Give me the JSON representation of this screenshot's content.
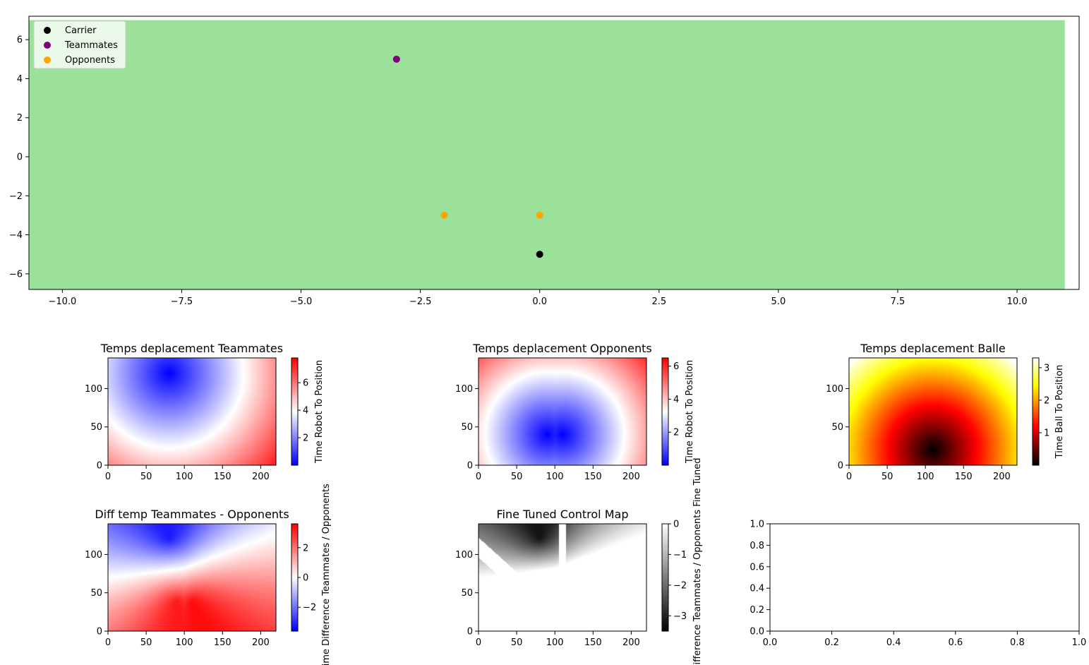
{
  "colors": {
    "field": "#9be19a",
    "carrier": "#000000",
    "teammates": "#800080",
    "opponents": "#ffa500"
  },
  "chart_data": [
    {
      "type": "scatter",
      "background": "green field rectangle",
      "xlim": [
        -10.7,
        11.3
      ],
      "ylim": [
        -6.8,
        7.2
      ],
      "xticks": [
        -10.0,
        -7.5,
        -5.0,
        -2.5,
        0.0,
        2.5,
        5.0,
        7.5,
        10.0
      ],
      "xtick_labels": [
        "−10.0",
        "−7.5",
        "−5.0",
        "−2.5",
        "0.0",
        "2.5",
        "5.0",
        "7.5",
        "10.0"
      ],
      "yticks": [
        6,
        4,
        2,
        0,
        -2,
        -4,
        -6
      ],
      "ytick_labels": [
        "6",
        "4",
        "2",
        "0",
        "−2",
        "−4",
        "−6"
      ],
      "field_rect": {
        "x0": -10.7,
        "x1": 11.0,
        "y0": -6.8,
        "y1": 7.0
      },
      "legend_position": "top-left",
      "series": [
        {
          "name": "Carrier",
          "color": "#000000",
          "points": [
            [
              0,
              -5
            ]
          ]
        },
        {
          "name": "Teammates",
          "color": "#800080",
          "points": [
            [
              -3,
              5
            ]
          ]
        },
        {
          "name": "Opponents",
          "color": "#ffa500",
          "points": [
            [
              -2,
              -3
            ],
            [
              0,
              -3
            ]
          ]
        }
      ]
    },
    {
      "type": "heatmap",
      "title": "Temps deplacement Teammates",
      "colormap": "bwr",
      "x_range": [
        0,
        220
      ],
      "y_range": [
        0,
        140
      ],
      "xticks": [
        "0",
        "50",
        "100",
        "150",
        "200"
      ],
      "yticks": [
        "0",
        "50",
        "100"
      ],
      "sources": [
        [
          80,
          120
        ]
      ],
      "value_range": [
        0,
        7.8
      ],
      "colorbar_label": "Time Robot To Position",
      "colorbar_ticks": [
        "2",
        "4",
        "6"
      ]
    },
    {
      "type": "heatmap",
      "title": "Temps deplacement Opponents",
      "colormap": "bwr",
      "x_range": [
        0,
        220
      ],
      "y_range": [
        0,
        140
      ],
      "xticks": [
        "0",
        "50",
        "100",
        "150",
        "200"
      ],
      "yticks": [
        "0",
        "50",
        "100"
      ],
      "sources": [
        [
          90,
          40
        ],
        [
          110,
          40
        ]
      ],
      "value_range": [
        0,
        6.5
      ],
      "colorbar_label": "Time Robot To Position",
      "colorbar_ticks": [
        "2",
        "4",
        "6"
      ]
    },
    {
      "type": "heatmap",
      "title": "Temps deplacement Balle",
      "colormap": "hot",
      "x_range": [
        0,
        220
      ],
      "y_range": [
        0,
        140
      ],
      "xticks": [
        "0",
        "50",
        "100",
        "150",
        "200"
      ],
      "yticks": [
        "0",
        "50",
        "100"
      ],
      "sources": [
        [
          110,
          20
        ]
      ],
      "value_range": [
        0,
        3.3
      ],
      "colorbar_label": "Time Ball To Position",
      "colorbar_ticks": [
        "1",
        "2",
        "3"
      ]
    },
    {
      "type": "heatmap",
      "title": "Diff temp Teammates - Opponents",
      "colormap": "bwr",
      "x_range": [
        0,
        220
      ],
      "y_range": [
        0,
        140
      ],
      "xticks": [
        "0",
        "50",
        "100",
        "150",
        "200"
      ],
      "yticks": [
        "0",
        "50",
        "100"
      ],
      "value_range": [
        -3.6,
        3.6
      ],
      "colorbar_label": "Time Difference Teammates / Opponents",
      "colorbar_ticks": [
        "−2",
        "0",
        "2"
      ]
    },
    {
      "type": "heatmap",
      "title": "Fine Tuned Control Map",
      "colormap": "gray",
      "x_range": [
        0,
        220
      ],
      "y_range": [
        0,
        140
      ],
      "xticks": [
        "0",
        "50",
        "100",
        "150",
        "200"
      ],
      "yticks": [
        "0",
        "50",
        "100"
      ],
      "value_range": [
        -3.5,
        0
      ],
      "colorbar_label": "Time Difference Teammates / Opponents Fine Tuned",
      "colorbar_ticks": [
        "−3",
        "−2",
        "−1",
        "0"
      ]
    },
    {
      "type": "scatter",
      "title": "",
      "empty": true,
      "xlim": [
        0,
        1
      ],
      "ylim": [
        0,
        1
      ],
      "xticks": [
        "0.0",
        "0.2",
        "0.4",
        "0.6",
        "0.8",
        "1.0"
      ],
      "yticks": [
        "0.0",
        "0.2",
        "0.4",
        "0.6",
        "0.8",
        "1.0"
      ]
    }
  ]
}
